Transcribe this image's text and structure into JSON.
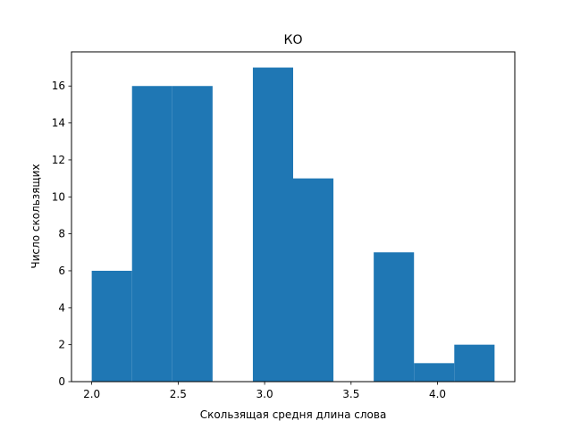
{
  "chart_data": {
    "type": "bar",
    "title": "КО",
    "xlabel": "Скользящая средня длина слова",
    "ylabel": "Число скользящих",
    "bins": [
      {
        "x0": 2.0,
        "x1": 2.233,
        "value": 6
      },
      {
        "x0": 2.233,
        "x1": 2.466,
        "value": 16
      },
      {
        "x0": 2.466,
        "x1": 2.699,
        "value": 16
      },
      {
        "x0": 2.699,
        "x1": 2.932,
        "value": 0
      },
      {
        "x0": 2.932,
        "x1": 3.165,
        "value": 17
      },
      {
        "x0": 3.165,
        "x1": 3.398,
        "value": 11
      },
      {
        "x0": 3.398,
        "x1": 3.631,
        "value": 0
      },
      {
        "x0": 3.631,
        "x1": 3.864,
        "value": 7
      },
      {
        "x0": 3.864,
        "x1": 4.097,
        "value": 1
      },
      {
        "x0": 4.097,
        "x1": 4.33,
        "value": 2
      }
    ],
    "xlim": [
      1.883,
      4.447
    ],
    "ylim": [
      0,
      17.85
    ],
    "xticks": [
      2.0,
      2.5,
      3.0,
      3.5,
      4.0
    ],
    "xtick_labels": [
      "2.0",
      "2.5",
      "3.0",
      "3.5",
      "4.0"
    ],
    "yticks": [
      0,
      2,
      4,
      6,
      8,
      10,
      12,
      14,
      16
    ],
    "ytick_labels": [
      "0",
      "2",
      "4",
      "6",
      "8",
      "10",
      "12",
      "14",
      "16"
    ],
    "grid": false,
    "bar_color": "#1f77b4"
  }
}
